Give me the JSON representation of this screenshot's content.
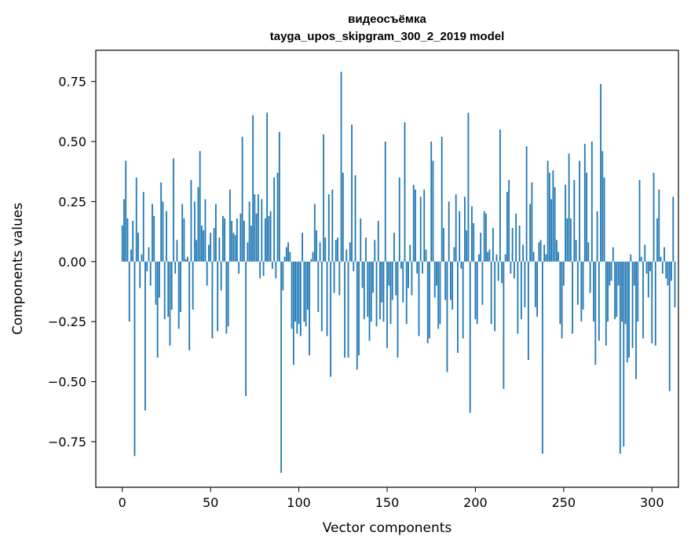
{
  "chart_data": {
    "type": "bar",
    "title": "видеосъёмка",
    "subtitle": "tayga_upos_skipgram_300_2_2019 model",
    "xlabel": "Vector components",
    "ylabel": "Components values",
    "xlim": [
      -15,
      315
    ],
    "ylim": [
      -0.94,
      0.88
    ],
    "xticks": [
      0,
      50,
      100,
      150,
      200,
      250,
      300
    ],
    "yticks": [
      -0.75,
      -0.5,
      -0.25,
      0.0,
      0.25,
      0.5,
      0.75
    ],
    "xtick_labels": [
      "0",
      "50",
      "100",
      "150",
      "200",
      "250",
      "300"
    ],
    "ytick_labels": [
      "−0.75",
      "−0.50",
      "−0.25",
      "0.00",
      "0.25",
      "0.50",
      "0.75"
    ],
    "bar_color": "#1f77b4",
    "values": [
      0.15,
      0.26,
      0.42,
      0.18,
      -0.25,
      0.05,
      0.17,
      -0.81,
      0.35,
      0.12,
      -0.11,
      0.03,
      0.29,
      -0.62,
      -0.04,
      0.06,
      -0.1,
      0.24,
      0.19,
      -0.18,
      -0.4,
      -0.15,
      0.33,
      0.25,
      -0.24,
      0.21,
      -0.23,
      -0.35,
      -0.2,
      0.43,
      -0.05,
      0.09,
      -0.28,
      -0.21,
      0.24,
      0.18,
      0.01,
      0.02,
      -0.37,
      0.34,
      -0.2,
      0.25,
      0.09,
      0.31,
      0.46,
      0.15,
      0.13,
      0.26,
      -0.1,
      0.07,
      0.12,
      -0.32,
      0.14,
      0.24,
      -0.29,
      0.1,
      -0.12,
      0.19,
      0.18,
      -0.3,
      -0.27,
      0.3,
      0.17,
      0.12,
      0.11,
      0.18,
      -0.05,
      0.2,
      0.52,
      0.17,
      -0.56,
      0.08,
      0.25,
      0.15,
      0.61,
      0.28,
      0.2,
      0.28,
      -0.07,
      0.26,
      -0.06,
      0.18,
      0.62,
      0.19,
      0.21,
      -0.03,
      0.35,
      -0.07,
      0.37,
      0.54,
      -0.88,
      -0.12,
      0.02,
      0.06,
      0.08,
      0.04,
      -0.28,
      -0.43,
      -0.25,
      -0.3,
      -0.26,
      -0.31,
      0.12,
      -0.25,
      -0.27,
      -0.2,
      -0.39,
      0.01,
      0.04,
      0.24,
      0.13,
      -0.21,
      0.08,
      -0.29,
      0.53,
      0.1,
      -0.31,
      0.28,
      -0.48,
      0.3,
      -0.13,
      0.09,
      0.1,
      -0.14,
      0.79,
      0.37,
      -0.4,
      0.05,
      -0.4,
      0.08,
      0.57,
      -0.04,
      0.36,
      -0.45,
      -0.39,
      0.18,
      -0.11,
      -0.24,
      0.1,
      -0.23,
      -0.33,
      -0.25,
      -0.13,
      0.09,
      -0.27,
      0.17,
      -0.24,
      -0.17,
      -0.25,
      0.5,
      -0.36,
      -0.1,
      -0.26,
      -0.16,
      0.12,
      -0.14,
      -0.4,
      0.35,
      -0.03,
      -0.17,
      0.58,
      -0.26,
      -0.11,
      0.07,
      -0.14,
      0.32,
      0.3,
      -0.05,
      -0.31,
      0.27,
      -0.05,
      0.3,
      0.05,
      -0.34,
      -0.32,
      0.5,
      0.42,
      -0.15,
      -0.1,
      -0.28,
      -0.26,
      0.52,
      0.14,
      -0.16,
      -0.46,
      0.25,
      -0.16,
      -0.2,
      0.06,
      0.28,
      -0.38,
      0.21,
      -0.03,
      -0.32,
      0.27,
      0.13,
      0.62,
      -0.63,
      0.23,
      0.16,
      -0.24,
      -0.26,
      0.03,
      0.12,
      -0.18,
      0.21,
      0.2,
      0.04,
      0.05,
      -0.26,
      0.14,
      -0.29,
      0.03,
      -0.08,
      0.55,
      -0.09,
      -0.53,
      0.03,
      0.29,
      0.34,
      -0.05,
      0.14,
      -0.07,
      0.2,
      -0.3,
      0.15,
      -0.24,
      0.07,
      -0.19,
      0.48,
      -0.41,
      0.24,
      0.33,
      0.04,
      -0.19,
      -0.23,
      0.08,
      0.09,
      -0.8,
      0.07,
      0.03,
      0.42,
      0.37,
      0.26,
      0.38,
      0.31,
      0.09,
      0.04,
      -0.26,
      -0.32,
      -0.1,
      0.32,
      0.18,
      0.45,
      0.18,
      -0.3,
      0.34,
      0.09,
      -0.18,
      0.42,
      -0.25,
      -0.2,
      0.49,
      0.37,
      0.08,
      -0.13,
      0.5,
      -0.25,
      -0.43,
      0.21,
      -0.33,
      0.74,
      0.46,
      0.35,
      -0.35,
      -0.25,
      -0.1,
      -0.08,
      0.06,
      -0.24,
      -0.23,
      -0.1,
      -0.8,
      -0.25,
      -0.77,
      -0.26,
      -0.42,
      -0.4,
      0.03,
      -0.36,
      -0.1,
      -0.49,
      -0.25,
      0.34,
      0.02,
      -0.32,
      0.07,
      -0.05,
      -0.15,
      -0.04,
      -0.34,
      0.37,
      -0.35,
      0.18,
      0.3,
      0.02,
      -0.05,
      0.06,
      -0.07,
      -0.1,
      -0.54,
      -0.08,
      0.27,
      -0.19
    ]
  }
}
